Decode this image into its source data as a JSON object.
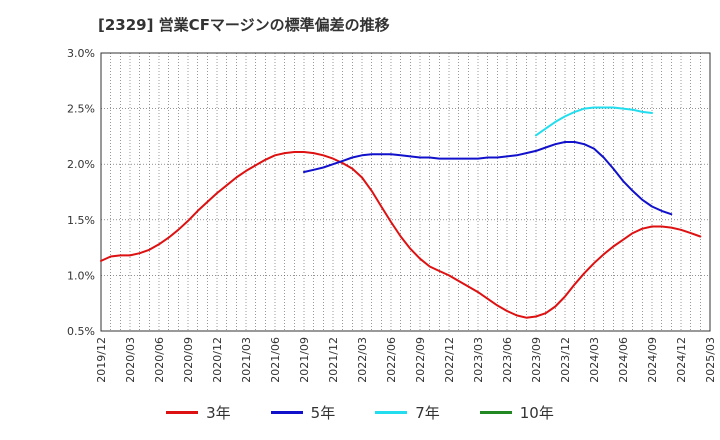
{
  "chart_data": {
    "type": "line",
    "title": "[2329]  営業CFマージンの標準偏差の推移",
    "xlabel": "",
    "ylabel": "",
    "ylim": [
      0.5,
      3.0
    ],
    "y_ticks": [
      "0.5%",
      "1.0%",
      "1.5%",
      "2.0%",
      "2.5%",
      "3.0%"
    ],
    "y_tick_values": [
      0.5,
      1.0,
      1.5,
      2.0,
      2.5,
      3.0
    ],
    "x_ticks": [
      "2019/12",
      "2020/03",
      "2020/06",
      "2020/09",
      "2020/12",
      "2021/03",
      "2021/06",
      "2021/09",
      "2021/12",
      "2022/03",
      "2022/06",
      "2022/09",
      "2022/12",
      "2023/03",
      "2023/06",
      "2023/09",
      "2023/12",
      "2024/03",
      "2024/06",
      "2024/09",
      "2024/12",
      "2025/03"
    ],
    "grid": true,
    "legend_position": "bottom",
    "series": [
      {
        "name": "3年",
        "color": "#dd1111",
        "points": [
          [
            "2019/12",
            1.13
          ],
          [
            "2020/01",
            1.17
          ],
          [
            "2020/02",
            1.18
          ],
          [
            "2020/03",
            1.18
          ],
          [
            "2020/04",
            1.2
          ],
          [
            "2020/05",
            1.23
          ],
          [
            "2020/06",
            1.28
          ],
          [
            "2020/07",
            1.34
          ],
          [
            "2020/08",
            1.41
          ],
          [
            "2020/09",
            1.49
          ],
          [
            "2020/10",
            1.58
          ],
          [
            "2020/11",
            1.66
          ],
          [
            "2020/12",
            1.74
          ],
          [
            "2021/01",
            1.81
          ],
          [
            "2021/02",
            1.88
          ],
          [
            "2021/03",
            1.94
          ],
          [
            "2021/04",
            1.99
          ],
          [
            "2021/05",
            2.04
          ],
          [
            "2021/06",
            2.08
          ],
          [
            "2021/07",
            2.1
          ],
          [
            "2021/08",
            2.11
          ],
          [
            "2021/09",
            2.11
          ],
          [
            "2021/10",
            2.1
          ],
          [
            "2021/11",
            2.08
          ],
          [
            "2021/12",
            2.05
          ],
          [
            "2022/01",
            2.01
          ],
          [
            "2022/02",
            1.96
          ],
          [
            "2022/03",
            1.88
          ],
          [
            "2022/04",
            1.76
          ],
          [
            "2022/05",
            1.62
          ],
          [
            "2022/06",
            1.48
          ],
          [
            "2022/07",
            1.35
          ],
          [
            "2022/08",
            1.24
          ],
          [
            "2022/09",
            1.15
          ],
          [
            "2022/10",
            1.08
          ],
          [
            "2022/11",
            1.04
          ],
          [
            "2022/12",
            1.0
          ],
          [
            "2023/01",
            0.95
          ],
          [
            "2023/02",
            0.9
          ],
          [
            "2023/03",
            0.85
          ],
          [
            "2023/04",
            0.79
          ],
          [
            "2023/05",
            0.73
          ],
          [
            "2023/06",
            0.68
          ],
          [
            "2023/07",
            0.64
          ],
          [
            "2023/08",
            0.62
          ],
          [
            "2023/09",
            0.63
          ],
          [
            "2023/10",
            0.66
          ],
          [
            "2023/11",
            0.72
          ],
          [
            "2023/12",
            0.81
          ],
          [
            "2024/01",
            0.92
          ],
          [
            "2024/02",
            1.02
          ],
          [
            "2024/03",
            1.11
          ],
          [
            "2024/04",
            1.19
          ],
          [
            "2024/05",
            1.26
          ],
          [
            "2024/06",
            1.32
          ],
          [
            "2024/07",
            1.38
          ],
          [
            "2024/08",
            1.42
          ],
          [
            "2024/09",
            1.44
          ],
          [
            "2024/10",
            1.44
          ],
          [
            "2024/11",
            1.43
          ],
          [
            "2024/12",
            1.41
          ],
          [
            "2025/01",
            1.38
          ],
          [
            "2025/02",
            1.35
          ]
        ]
      },
      {
        "name": "5年",
        "color": "#1111cc",
        "points": [
          [
            "2021/09",
            1.93
          ],
          [
            "2021/10",
            1.95
          ],
          [
            "2021/11",
            1.97
          ],
          [
            "2021/12",
            2.0
          ],
          [
            "2022/01",
            2.03
          ],
          [
            "2022/02",
            2.06
          ],
          [
            "2022/03",
            2.08
          ],
          [
            "2022/04",
            2.09
          ],
          [
            "2022/05",
            2.09
          ],
          [
            "2022/06",
            2.09
          ],
          [
            "2022/07",
            2.08
          ],
          [
            "2022/08",
            2.07
          ],
          [
            "2022/09",
            2.06
          ],
          [
            "2022/10",
            2.06
          ],
          [
            "2022/11",
            2.05
          ],
          [
            "2022/12",
            2.05
          ],
          [
            "2023/01",
            2.05
          ],
          [
            "2023/02",
            2.05
          ],
          [
            "2023/03",
            2.05
          ],
          [
            "2023/04",
            2.06
          ],
          [
            "2023/05",
            2.06
          ],
          [
            "2023/06",
            2.07
          ],
          [
            "2023/07",
            2.08
          ],
          [
            "2023/08",
            2.1
          ],
          [
            "2023/09",
            2.12
          ],
          [
            "2023/10",
            2.15
          ],
          [
            "2023/11",
            2.18
          ],
          [
            "2023/12",
            2.2
          ],
          [
            "2024/01",
            2.2
          ],
          [
            "2024/02",
            2.18
          ],
          [
            "2024/03",
            2.14
          ],
          [
            "2024/04",
            2.06
          ],
          [
            "2024/05",
            1.96
          ],
          [
            "2024/06",
            1.85
          ],
          [
            "2024/07",
            1.76
          ],
          [
            "2024/08",
            1.68
          ],
          [
            "2024/09",
            1.62
          ],
          [
            "2024/10",
            1.58
          ],
          [
            "2024/11",
            1.55
          ]
        ]
      },
      {
        "name": "7年",
        "color": "#22ddee",
        "points": [
          [
            "2023/09",
            2.26
          ],
          [
            "2023/10",
            2.32
          ],
          [
            "2023/11",
            2.38
          ],
          [
            "2023/12",
            2.43
          ],
          [
            "2024/01",
            2.47
          ],
          [
            "2024/02",
            2.5
          ],
          [
            "2024/03",
            2.51
          ],
          [
            "2024/04",
            2.51
          ],
          [
            "2024/05",
            2.51
          ],
          [
            "2024/06",
            2.5
          ],
          [
            "2024/07",
            2.49
          ],
          [
            "2024/08",
            2.47
          ],
          [
            "2024/09",
            2.46
          ]
        ]
      },
      {
        "name": "10年",
        "color": "#228822",
        "points": []
      }
    ]
  }
}
